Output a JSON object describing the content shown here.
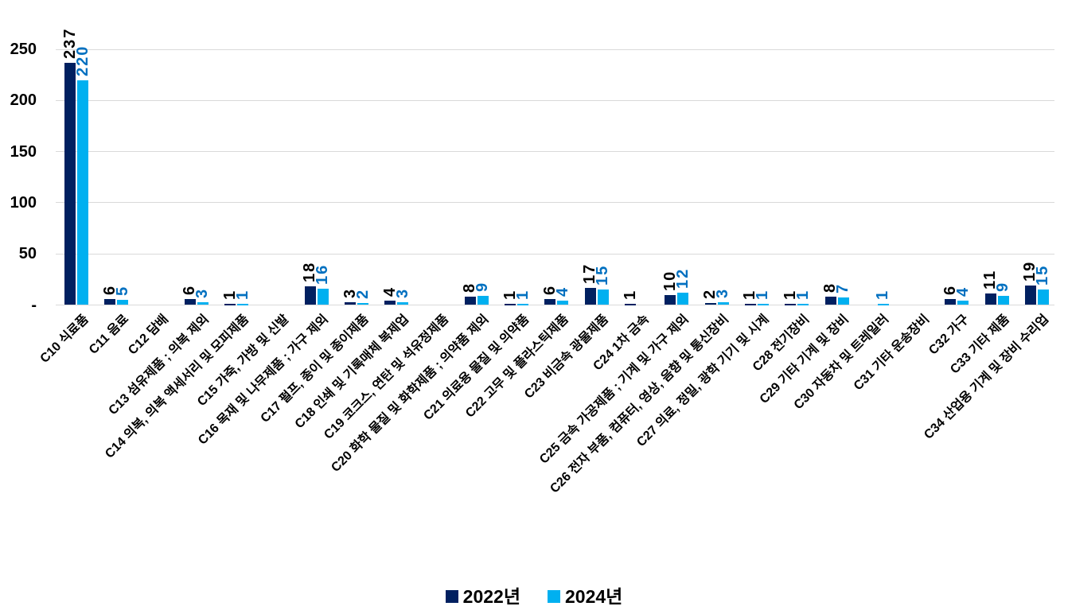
{
  "chart_data": {
    "type": "bar",
    "title": "",
    "xlabel": "",
    "ylabel": "",
    "categories": [
      "C10 식료품",
      "C11 음료",
      "C12 담배",
      "C13 섬유제품 ; 의복 제외",
      "C14 의복, 의복 액세서리 및 모피제품",
      "C15 가죽, 가방 및 신발",
      "C16 목재 및 나무제품 ; 가구 제외",
      "C17 펄프, 종이 및 종이제품",
      "C18 인쇄 및 기록매체 복제업",
      "C19 코크스, 연탄 및 석유정제품",
      "C20 화학 물질 및 화학제품 ; 의약품 제외",
      "C21 의료용 물질 및 의약품",
      "C22 고무 및 플라스틱제품",
      "C23 비금속 광물제품",
      "C24 1차 금속",
      "C25 금속 가공제품 ; 기계 및 가구 제외",
      "C26 전자 부품, 컴퓨터, 영상, 음향 및 통신장비",
      "C27 의료, 정밀, 광학 기기 및 시계",
      "C28 전기장비",
      "C29 기타 기계 및 장비",
      "C30 자동차 및 트레일러",
      "C31 기타 운송장비",
      "C32 가구",
      "C33 기타 제품",
      "C34 산업용 기계 및 장비 수리업"
    ],
    "series": [
      {
        "name": "2022년",
        "color": "#002060",
        "label_color": "#000000",
        "values": [
          237,
          6,
          0,
          6,
          1,
          0,
          18,
          3,
          4,
          0,
          8,
          1,
          6,
          17,
          1,
          10,
          2,
          1,
          1,
          8,
          0,
          0,
          6,
          11,
          19
        ]
      },
      {
        "name": "2024년",
        "color": "#00B0F0",
        "label_color": "#0070C0",
        "values": [
          220,
          5,
          0,
          3,
          1,
          0,
          16,
          2,
          3,
          0,
          9,
          1,
          4,
          15,
          0,
          12,
          3,
          1,
          1,
          7,
          1,
          0,
          4,
          9,
          15
        ]
      }
    ],
    "ylim": [
      0,
      250
    ],
    "yticks": [
      0,
      50,
      100,
      150,
      200,
      250
    ],
    "ytick_labels": [
      "-",
      "50",
      "100",
      "150",
      "200",
      "250"
    ],
    "grid": "horizontal",
    "gridline_color": "#D9D9D9",
    "legend_position": "bottom",
    "data_labels_shown": true,
    "zero_value_bars_hidden": true
  }
}
